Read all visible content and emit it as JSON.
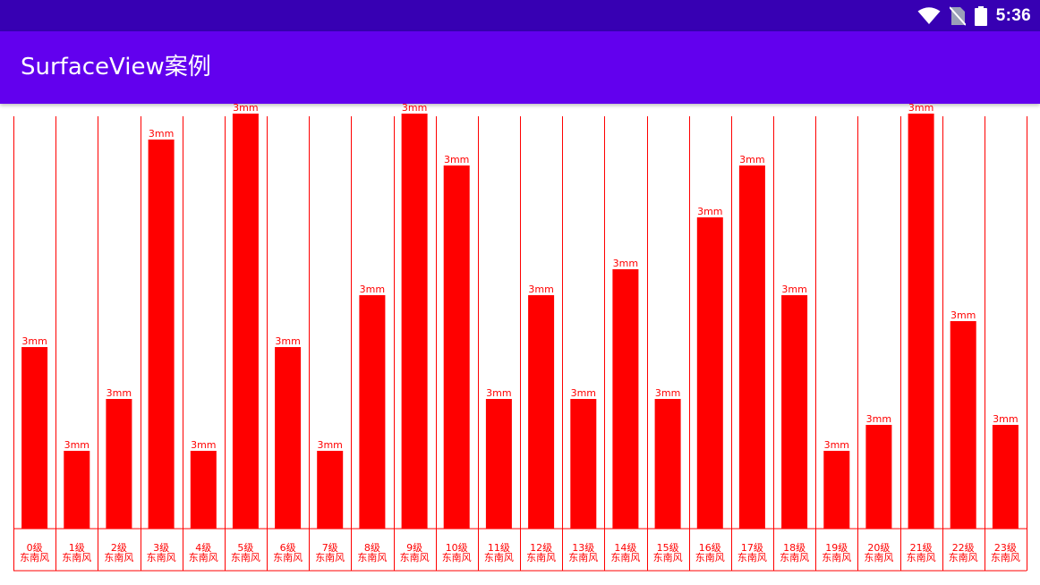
{
  "status_bar": {
    "time": "5:36",
    "icons": [
      "wifi-icon",
      "no-sim-icon",
      "battery-icon"
    ],
    "background": "#3700b3"
  },
  "app_bar": {
    "title": "SurfaceView案例",
    "background": "#6200ee"
  },
  "chart_data": {
    "type": "bar",
    "title": "",
    "xlabel": "",
    "ylabel": "",
    "color": "#ff0000",
    "grid": true,
    "value_label": "3mm",
    "categories": [
      [
        "0级",
        "东南风"
      ],
      [
        "1级",
        "东南风"
      ],
      [
        "2级",
        "东南风"
      ],
      [
        "3级",
        "东南风"
      ],
      [
        "4级",
        "东南风"
      ],
      [
        "5级",
        "东南风"
      ],
      [
        "6级",
        "东南风"
      ],
      [
        "7级",
        "东南风"
      ],
      [
        "8级",
        "东南风"
      ],
      [
        "9级",
        "东南风"
      ],
      [
        "10级",
        "东南风"
      ],
      [
        "11级",
        "东南风"
      ],
      [
        "12级",
        "东南风"
      ],
      [
        "13级",
        "东南风"
      ],
      [
        "14级",
        "东南风"
      ],
      [
        "15级",
        "东南风"
      ],
      [
        "16级",
        "东南风"
      ],
      [
        "17级",
        "东南风"
      ],
      [
        "18级",
        "东南风"
      ],
      [
        "19级",
        "东南风"
      ],
      [
        "20级",
        "东南风"
      ],
      [
        "21级",
        "东南风"
      ],
      [
        "22级",
        "东南风"
      ],
      [
        "23级",
        "东南风"
      ]
    ],
    "values": [
      7,
      3,
      5,
      15,
      3,
      16,
      7,
      3,
      9,
      16,
      14,
      5,
      9,
      5,
      10,
      5,
      12,
      14,
      9,
      3,
      4,
      16,
      8,
      4
    ],
    "ylim": [
      0,
      16
    ]
  }
}
